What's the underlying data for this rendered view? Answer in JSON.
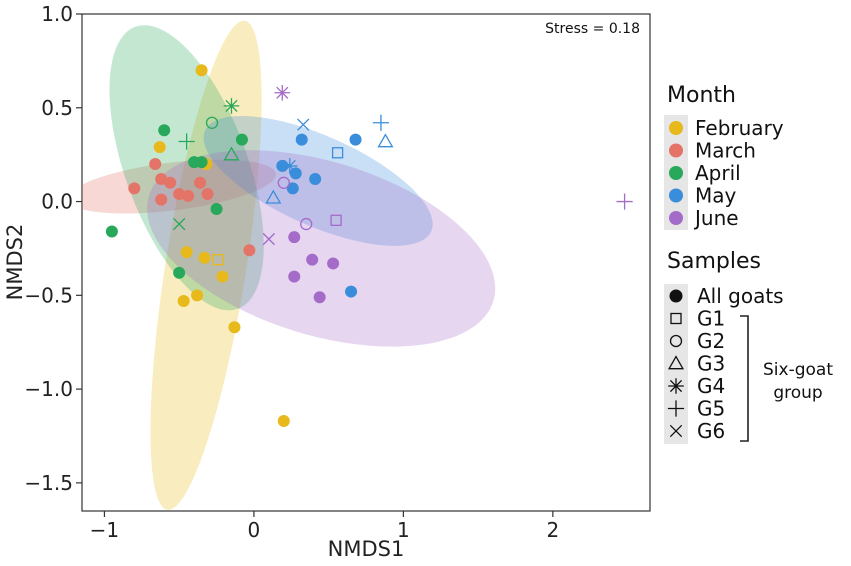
{
  "chart_data": {
    "type": "scatter",
    "xlabel": "NMDS1",
    "ylabel": "NMDS2",
    "xlim": [
      -1.15,
      2.65
    ],
    "ylim": [
      -1.65,
      1.0
    ],
    "x_ticks": [
      -1,
      0,
      1,
      2
    ],
    "y_ticks": [
      1.0,
      0.5,
      0.0,
      -0.5,
      -1.0,
      -1.5
    ],
    "x_tick_labels": [
      "−1",
      "0",
      "1",
      "2"
    ],
    "y_tick_labels": [
      "1.0",
      "0.5",
      "0.0",
      "−0.5",
      "−1.0",
      "−1.5"
    ],
    "stress_label": "Stress = 0.18",
    "month_legend": {
      "title": "Month",
      "entries": [
        {
          "name": "February",
          "color": "#E8B91A"
        },
        {
          "name": "March",
          "color": "#E57468"
        },
        {
          "name": "April",
          "color": "#28A85A"
        },
        {
          "name": "May",
          "color": "#3A8DDB"
        },
        {
          "name": "June",
          "color": "#A46BC8"
        }
      ]
    },
    "sample_legend": {
      "title": "Samples",
      "entries": [
        {
          "name": "All goats",
          "shape": "circle-filled"
        },
        {
          "name": "G1",
          "shape": "square"
        },
        {
          "name": "G2",
          "shape": "circle-open"
        },
        {
          "name": "G3",
          "shape": "triangle"
        },
        {
          "name": "G4",
          "shape": "asterisk"
        },
        {
          "name": "G5",
          "shape": "plus"
        },
        {
          "name": "G6",
          "shape": "cross"
        }
      ],
      "group_label_line1": "Six-goat",
      "group_label_line2": "group"
    },
    "ellipses": [
      {
        "month": "February",
        "cx": -0.32,
        "cy": -0.34,
        "rx": 1.32,
        "ry": 0.27,
        "angle": -81
      },
      {
        "month": "March",
        "cx": -0.55,
        "cy": 0.08,
        "rx": 0.56,
        "ry": 0.16,
        "angle": -7
      },
      {
        "month": "April",
        "cx": -0.45,
        "cy": 0.18,
        "rx": 0.8,
        "ry": 0.41,
        "angle": 70
      },
      {
        "month": "May",
        "cx": 0.43,
        "cy": 0.11,
        "rx": 0.66,
        "ry": 0.3,
        "angle": 24
      },
      {
        "month": "June",
        "cx": 0.45,
        "cy": -0.25,
        "rx": 0.96,
        "ry": 0.58,
        "angle": 17
      }
    ],
    "series": [
      {
        "name": "February",
        "points": [
          {
            "x": -0.35,
            "y": 0.7,
            "shape": "circle-filled"
          },
          {
            "x": -0.63,
            "y": 0.29,
            "shape": "circle-filled"
          },
          {
            "x": -0.32,
            "y": 0.2,
            "shape": "circle-filled"
          },
          {
            "x": -0.45,
            "y": -0.27,
            "shape": "circle-filled"
          },
          {
            "x": -0.33,
            "y": -0.3,
            "shape": "circle-filled"
          },
          {
            "x": -0.21,
            "y": -0.4,
            "shape": "circle-filled"
          },
          {
            "x": -0.38,
            "y": -0.5,
            "shape": "circle-filled"
          },
          {
            "x": -0.47,
            "y": -0.53,
            "shape": "circle-filled"
          },
          {
            "x": -0.13,
            "y": -0.67,
            "shape": "circle-filled"
          },
          {
            "x": 0.2,
            "y": -1.17,
            "shape": "circle-filled"
          },
          {
            "x": -0.24,
            "y": -0.31,
            "shape": "square"
          }
        ]
      },
      {
        "name": "March",
        "points": [
          {
            "x": -0.66,
            "y": 0.2,
            "shape": "circle-filled"
          },
          {
            "x": -0.8,
            "y": 0.07,
            "shape": "circle-filled"
          },
          {
            "x": -0.62,
            "y": 0.12,
            "shape": "circle-filled"
          },
          {
            "x": -0.56,
            "y": 0.1,
            "shape": "circle-filled"
          },
          {
            "x": -0.5,
            "y": 0.04,
            "shape": "circle-filled"
          },
          {
            "x": -0.44,
            "y": 0.03,
            "shape": "circle-filled"
          },
          {
            "x": -0.36,
            "y": 0.1,
            "shape": "circle-filled"
          },
          {
            "x": -0.31,
            "y": 0.04,
            "shape": "circle-filled"
          },
          {
            "x": -0.62,
            "y": 0.01,
            "shape": "circle-filled"
          },
          {
            "x": -0.03,
            "y": -0.26,
            "shape": "circle-filled"
          }
        ]
      },
      {
        "name": "April",
        "points": [
          {
            "x": -0.6,
            "y": 0.38,
            "shape": "circle-filled"
          },
          {
            "x": -0.08,
            "y": 0.33,
            "shape": "circle-filled"
          },
          {
            "x": -0.4,
            "y": 0.21,
            "shape": "circle-filled"
          },
          {
            "x": -0.35,
            "y": 0.21,
            "shape": "circle-filled"
          },
          {
            "x": -0.25,
            "y": -0.04,
            "shape": "circle-filled"
          },
          {
            "x": -0.95,
            "y": -0.16,
            "shape": "circle-filled"
          },
          {
            "x": -0.5,
            "y": -0.38,
            "shape": "circle-filled"
          },
          {
            "x": -0.15,
            "y": 0.25,
            "shape": "triangle"
          },
          {
            "x": -0.15,
            "y": 0.51,
            "shape": "asterisk"
          },
          {
            "x": -0.45,
            "y": 0.32,
            "shape": "plus"
          },
          {
            "x": -0.5,
            "y": -0.12,
            "shape": "cross"
          },
          {
            "x": -0.28,
            "y": 0.42,
            "shape": "circle-open"
          }
        ]
      },
      {
        "name": "May",
        "points": [
          {
            "x": 0.32,
            "y": 0.33,
            "shape": "circle-filled"
          },
          {
            "x": 0.68,
            "y": 0.33,
            "shape": "circle-filled"
          },
          {
            "x": 0.19,
            "y": 0.19,
            "shape": "circle-filled"
          },
          {
            "x": 0.28,
            "y": 0.15,
            "shape": "circle-filled"
          },
          {
            "x": 0.26,
            "y": 0.07,
            "shape": "circle-filled"
          },
          {
            "x": 0.41,
            "y": 0.12,
            "shape": "circle-filled"
          },
          {
            "x": 0.65,
            "y": -0.48,
            "shape": "circle-filled"
          },
          {
            "x": 0.56,
            "y": 0.26,
            "shape": "square"
          },
          {
            "x": 0.13,
            "y": 0.02,
            "shape": "triangle"
          },
          {
            "x": 0.88,
            "y": 0.32,
            "shape": "triangle"
          },
          {
            "x": 0.24,
            "y": 0.19,
            "shape": "asterisk"
          },
          {
            "x": 0.85,
            "y": 0.42,
            "shape": "plus"
          },
          {
            "x": 0.33,
            "y": 0.41,
            "shape": "cross"
          }
        ]
      },
      {
        "name": "June",
        "points": [
          {
            "x": 0.27,
            "y": -0.19,
            "shape": "circle-filled"
          },
          {
            "x": 0.39,
            "y": -0.31,
            "shape": "circle-filled"
          },
          {
            "x": 0.53,
            "y": -0.33,
            "shape": "circle-filled"
          },
          {
            "x": 0.27,
            "y": -0.4,
            "shape": "circle-filled"
          },
          {
            "x": 0.44,
            "y": -0.51,
            "shape": "circle-filled"
          },
          {
            "x": 0.2,
            "y": 0.1,
            "shape": "circle-open"
          },
          {
            "x": 0.35,
            "y": -0.12,
            "shape": "circle-open"
          },
          {
            "x": 0.55,
            "y": -0.1,
            "shape": "square"
          },
          {
            "x": 0.19,
            "y": 0.58,
            "shape": "asterisk"
          },
          {
            "x": 2.48,
            "y": 0.0,
            "shape": "plus"
          },
          {
            "x": 0.1,
            "y": -0.2,
            "shape": "cross"
          }
        ]
      }
    ]
  }
}
